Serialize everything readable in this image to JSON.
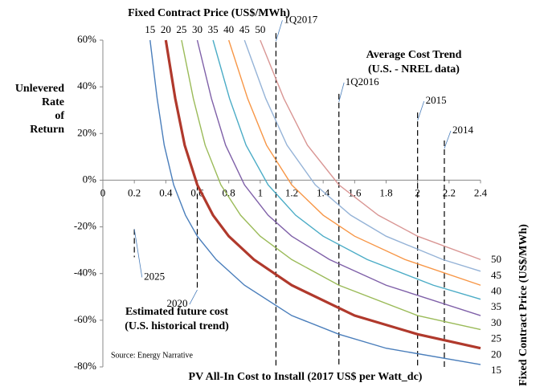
{
  "chart_data": {
    "type": "line",
    "top_title": "Fixed Contract Price (US$/MWh)",
    "x_label": "PV All-In Cost to Install (2017 US$ per Watt_dc)",
    "y_label": [
      "Unlevered",
      "Rate",
      "of",
      "Return"
    ],
    "right_title": "Fixed Contract Price (US$/MWh)",
    "trend_note": [
      "Average Cost Trend",
      "(U.S. - NREL data)"
    ],
    "future_note": [
      "Estimated future cost",
      "(U.S. historical trend)"
    ],
    "source": "Source: Energy Narrative",
    "xlim": [
      0,
      2.4
    ],
    "xticks": [
      0,
      0.2,
      0.4,
      0.6,
      0.8,
      1,
      1.2,
      1.4,
      1.6,
      1.8,
      2,
      2.2,
      2.4
    ],
    "ylim": [
      -80,
      60
    ],
    "yticks": [
      {
        "value": -80,
        "label": "-80%"
      },
      {
        "value": -60,
        "label": "-60%"
      },
      {
        "value": -40,
        "label": "-40%"
      },
      {
        "value": -20,
        "label": "-20%"
      },
      {
        "value": 0,
        "label": "0%"
      },
      {
        "value": 20,
        "label": "20%"
      },
      {
        "value": 40,
        "label": "40%"
      },
      {
        "value": 60,
        "label": "60%"
      }
    ],
    "series": [
      {
        "name": "15",
        "color": "#4a7ebb",
        "x": [
          0.3,
          0.345,
          0.39,
          0.45,
          0.525,
          0.6,
          0.72,
          0.9,
          1.2,
          1.5,
          1.8,
          2.4
        ],
        "values": [
          60,
          35,
          15,
          -2,
          -15,
          -24,
          -34,
          -45,
          -58,
          -66,
          -72,
          -79
        ]
      },
      {
        "name": "20",
        "color": "#b0392c",
        "x": [
          0.4,
          0.46,
          0.52,
          0.6,
          0.7,
          0.8,
          0.96,
          1.2,
          1.6,
          2.0,
          2.4
        ],
        "values": [
          60,
          35,
          15,
          -2,
          -15,
          -24,
          -34,
          -45,
          -58,
          -66,
          -72
        ]
      },
      {
        "name": "25",
        "color": "#9bbb59",
        "x": [
          0.5,
          0.575,
          0.65,
          0.75,
          0.875,
          1.0,
          1.2,
          1.5,
          2.0,
          2.4
        ],
        "values": [
          60,
          35,
          15,
          -2,
          -15,
          -24,
          -34,
          -45,
          -58,
          -64
        ]
      },
      {
        "name": "30",
        "color": "#7f60a8",
        "x": [
          0.6,
          0.69,
          0.78,
          0.9,
          1.05,
          1.2,
          1.44,
          1.8,
          2.4
        ],
        "values": [
          60,
          35,
          15,
          -2,
          -15,
          -24,
          -34,
          -45,
          -58
        ]
      },
      {
        "name": "35",
        "color": "#4bacc6",
        "x": [
          0.7,
          0.805,
          0.91,
          1.05,
          1.225,
          1.4,
          1.68,
          2.1,
          2.4
        ],
        "values": [
          60,
          35,
          15,
          -2,
          -15,
          -24,
          -34,
          -45,
          -51
        ]
      },
      {
        "name": "40",
        "color": "#f79646",
        "x": [
          0.8,
          0.92,
          1.04,
          1.2,
          1.4,
          1.6,
          1.92,
          2.4
        ],
        "values": [
          60,
          35,
          15,
          -2,
          -15,
          -24,
          -34,
          -45
        ]
      },
      {
        "name": "45",
        "color": "#95b3d7",
        "x": [
          0.9,
          1.035,
          1.17,
          1.35,
          1.575,
          1.8,
          2.16,
          2.4
        ],
        "values": [
          60,
          35,
          15,
          -2,
          -15,
          -24,
          -34,
          -39
        ]
      },
      {
        "name": "50",
        "color": "#d99694",
        "x": [
          1.0,
          1.15,
          1.3,
          1.5,
          1.75,
          2.0,
          2.4
        ],
        "values": [
          60,
          35,
          15,
          -2,
          -15,
          -24,
          -34
        ]
      }
    ],
    "markers": [
      {
        "text": "2025",
        "x": 0.2,
        "y_top": -21,
        "y_bottom": -33
      },
      {
        "text": "2020",
        "x": 0.6,
        "y_top": -2,
        "y_bottom": -47
      },
      {
        "text": "1Q2017",
        "x": 1.1,
        "y_top": 63,
        "y_bottom": -80
      },
      {
        "text": "1Q2016",
        "x": 1.5,
        "y_top": 37,
        "y_bottom": -80
      },
      {
        "text": "2015",
        "x": 2.0,
        "y_top": 29,
        "y_bottom": -80
      },
      {
        "text": "2014",
        "x": 2.17,
        "y_top": 17,
        "y_bottom": -80
      }
    ]
  }
}
